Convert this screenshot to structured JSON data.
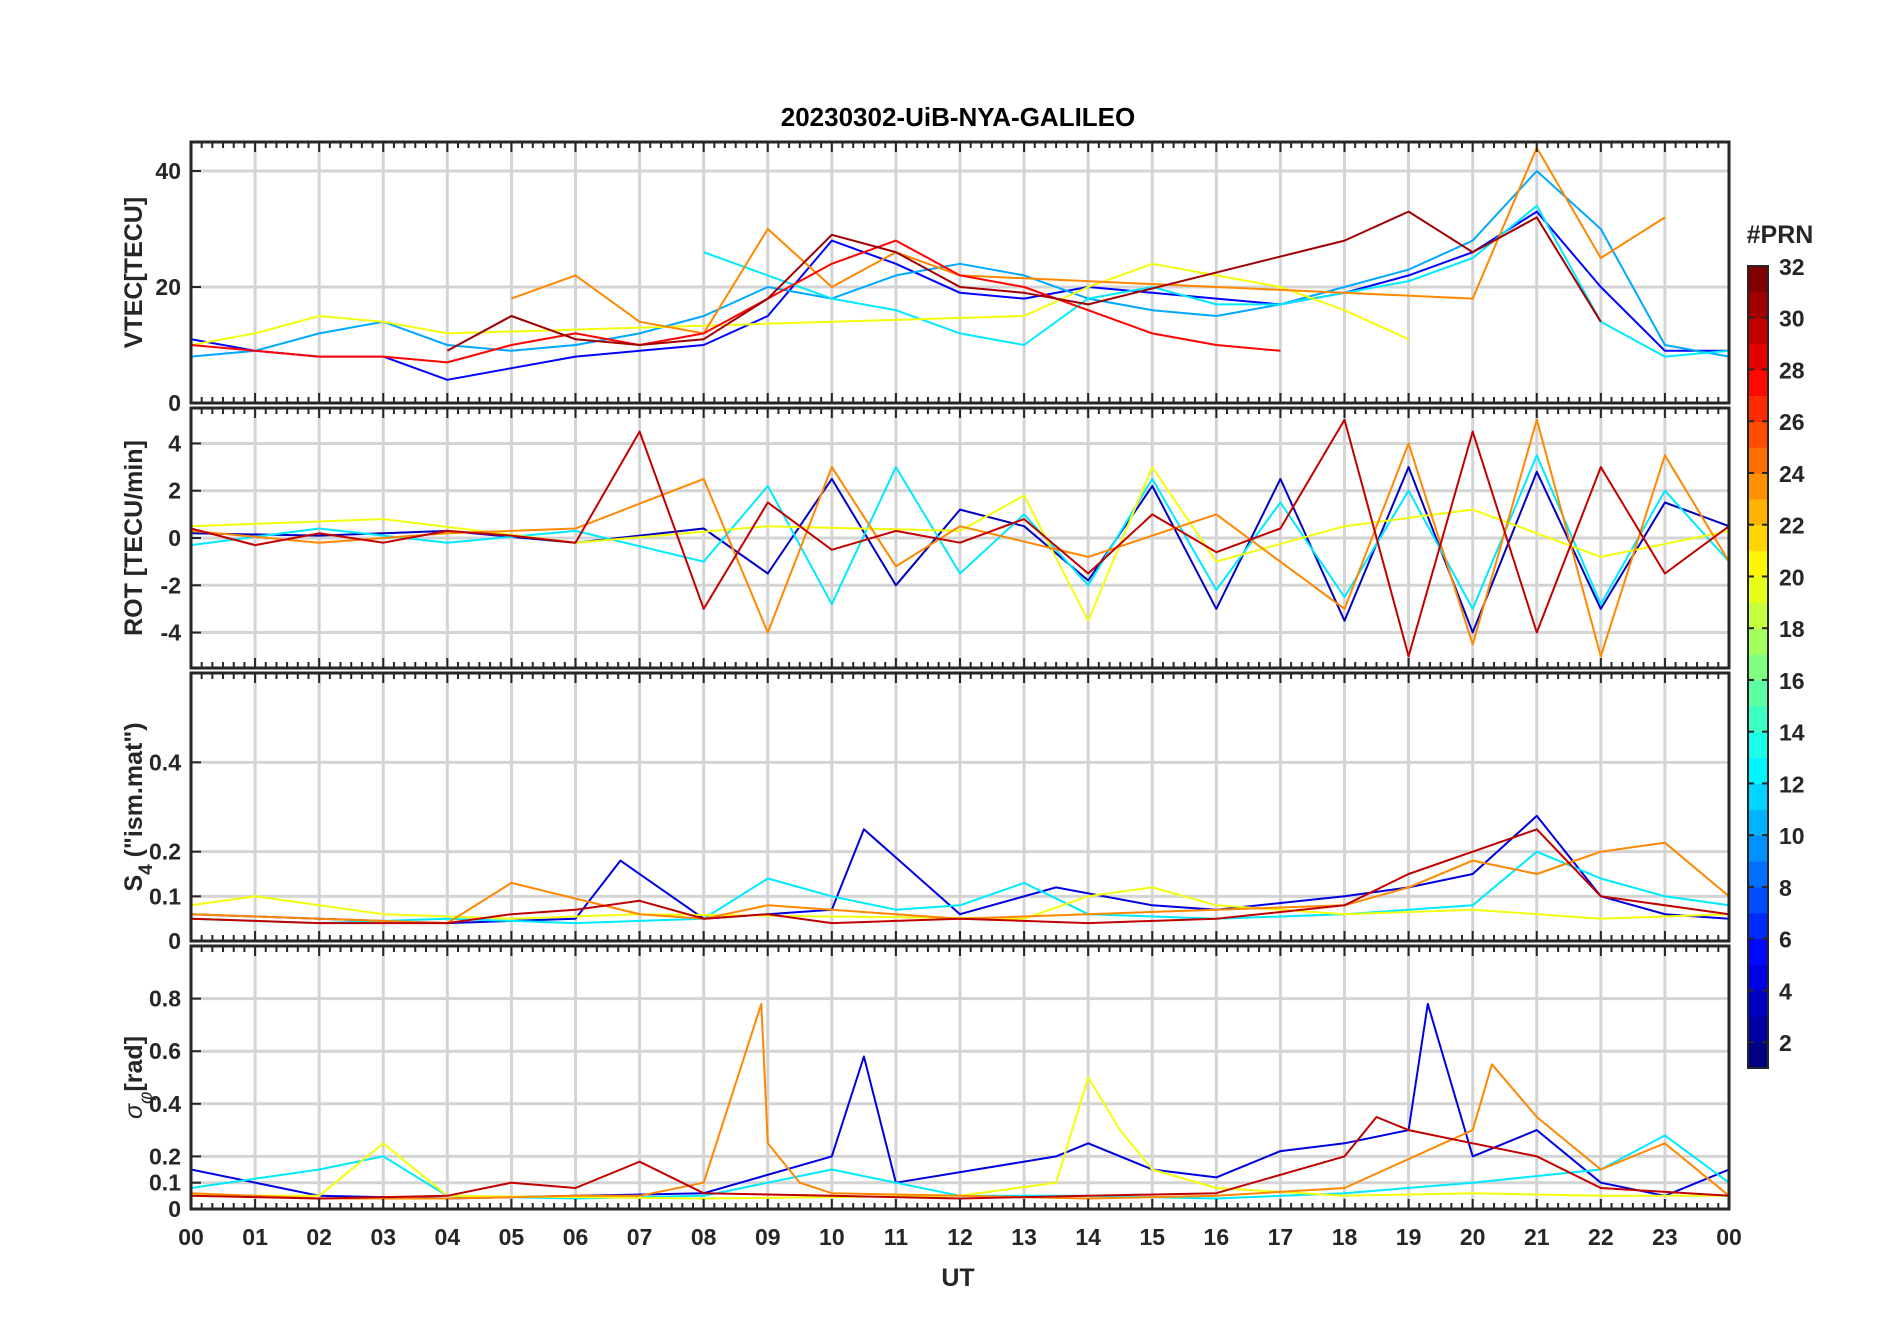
{
  "chart_data": {
    "type": "line",
    "title": "20230302-UiB-NYA-GALILEO",
    "xlabel": "UT",
    "x_ticks": [
      "00",
      "01",
      "02",
      "03",
      "04",
      "05",
      "06",
      "07",
      "08",
      "09",
      "10",
      "11",
      "12",
      "13",
      "14",
      "15",
      "16",
      "17",
      "18",
      "19",
      "20",
      "21",
      "22",
      "23",
      "00"
    ],
    "xlim_hours": [
      0,
      24
    ],
    "colorbar": {
      "label": "#PRN",
      "range": [
        1,
        32
      ],
      "ticks": [
        "2",
        "4",
        "6",
        "8",
        "10",
        "12",
        "14",
        "16",
        "18",
        "20",
        "22",
        "24",
        "26",
        "28",
        "30",
        "32"
      ],
      "colormap": "jet"
    },
    "panels": [
      {
        "id": "vtec",
        "ylabel": "VTEC[TECU]",
        "ylim": [
          0,
          45
        ],
        "yticks": [
          "0",
          "20",
          "40"
        ],
        "series": [
          {
            "prn": 5,
            "x": [
              0,
              1,
              2,
              3,
              4,
              5,
              6,
              7,
              8,
              9,
              10,
              11,
              12,
              13,
              14,
              15,
              16,
              17,
              18,
              19,
              20,
              21,
              22,
              23,
              24
            ],
            "y": [
              11,
              9,
              8,
              8,
              4,
              6,
              8,
              9,
              10,
              15,
              28,
              24,
              19,
              18,
              20,
              19,
              18,
              17,
              19,
              22,
              26,
              33,
              20,
              9,
              9
            ]
          },
          {
            "prn": 10,
            "x": [
              0,
              1,
              2,
              3,
              4,
              5,
              6,
              7,
              8,
              9,
              10,
              11,
              12,
              13,
              14,
              15,
              16,
              17,
              18,
              19,
              20,
              21,
              22,
              23,
              24
            ],
            "y": [
              8,
              9,
              12,
              14,
              10,
              9,
              10,
              12,
              15,
              20,
              18,
              22,
              24,
              22,
              18,
              16,
              15,
              17,
              20,
              23,
              28,
              40,
              30,
              10,
              8
            ]
          },
          {
            "prn": 12,
            "x": [
              8,
              9,
              10,
              11,
              12,
              13,
              14,
              15,
              16,
              17,
              18,
              19,
              20,
              21,
              22,
              23,
              24
            ],
            "y": [
              26,
              22,
              18,
              16,
              12,
              10,
              18,
              20,
              17,
              17,
              19,
              21,
              25,
              34,
              14,
              8,
              9
            ]
          },
          {
            "prn": 20,
            "x": [
              0,
              1,
              2,
              3,
              4,
              13,
              14,
              15,
              16,
              17,
              18,
              19
            ],
            "y": [
              10,
              12,
              15,
              14,
              12,
              15,
              20,
              24,
              22,
              20,
              16,
              11
            ]
          },
          {
            "prn": 24,
            "x": [
              5,
              6,
              7,
              8,
              9,
              10,
              11,
              12,
              20,
              21,
              22,
              23
            ],
            "y": [
              18,
              22,
              14,
              12,
              30,
              20,
              26,
              22,
              18,
              44,
              25,
              32
            ]
          },
          {
            "prn": 28,
            "x": [
              0,
              1,
              2,
              3,
              4,
              5,
              6,
              7,
              8,
              9,
              10,
              11,
              12,
              13,
              14,
              15,
              16,
              17
            ],
            "y": [
              10,
              9,
              8,
              8,
              7,
              10,
              12,
              10,
              12,
              18,
              24,
              28,
              22,
              20,
              16,
              12,
              10,
              9
            ]
          },
          {
            "prn": 31,
            "x": [
              4,
              5,
              6,
              7,
              8,
              9,
              10,
              11,
              12,
              13,
              14,
              18,
              19,
              20,
              21,
              22
            ],
            "y": [
              9,
              15,
              11,
              10,
              11,
              18,
              29,
              26,
              20,
              19,
              17,
              28,
              33,
              26,
              32,
              14
            ]
          }
        ]
      },
      {
        "id": "rot",
        "ylabel": "ROT [TECU/min]",
        "ylim": [
          -5.5,
          5.5
        ],
        "yticks": [
          "-4",
          "-2",
          "0",
          "2",
          "4"
        ],
        "series": [
          {
            "prn": 3,
            "x": [
              0,
              2,
              4,
              6,
              8,
              9,
              10,
              11,
              12,
              13,
              14,
              15,
              16,
              17,
              18,
              19,
              20,
              21,
              22,
              23,
              24
            ],
            "y": [
              0.2,
              0.1,
              0.3,
              -0.2,
              0.4,
              -1.5,
              2.5,
              -2,
              1.2,
              0.5,
              -1.8,
              2.2,
              -3,
              2.5,
              -3.5,
              3,
              -4,
              2.8,
              -3,
              1.5,
              0.5
            ]
          },
          {
            "prn": 12,
            "x": [
              0,
              2,
              4,
              6,
              8,
              9,
              10,
              11,
              12,
              13,
              14,
              15,
              16,
              17,
              18,
              19,
              20,
              21,
              22,
              23,
              24
            ],
            "y": [
              -0.3,
              0.4,
              -0.2,
              0.3,
              -1,
              2.2,
              -2.8,
              3,
              -1.5,
              1,
              -2,
              2.5,
              -2.2,
              1.5,
              -2.5,
              2,
              -3,
              3.5,
              -2.8,
              2,
              -1
            ]
          },
          {
            "prn": 20,
            "x": [
              0,
              3,
              6,
              9,
              12,
              13,
              14,
              15,
              16,
              18,
              20,
              22,
              24
            ],
            "y": [
              0.5,
              0.8,
              -0.2,
              0.5,
              0.3,
              1.8,
              -3.5,
              3,
              -1,
              0.5,
              1.2,
              -0.8,
              0.3
            ]
          },
          {
            "prn": 24,
            "x": [
              0,
              2,
              4,
              6,
              8,
              9,
              10,
              11,
              12,
              14,
              16,
              18,
              19,
              20,
              21,
              22,
              23,
              24
            ],
            "y": [
              0.3,
              -0.2,
              0.2,
              0.4,
              2.5,
              -4,
              3,
              -1.2,
              0.5,
              -0.8,
              1,
              -3,
              4,
              -4.5,
              5,
              -5,
              3.5,
              -1
            ]
          },
          {
            "prn": 30,
            "x": [
              0,
              1,
              2,
              3,
              4,
              5,
              6,
              7,
              8,
              9,
              10,
              11,
              12,
              13,
              14,
              15,
              16,
              17,
              18,
              19,
              20,
              21,
              22,
              23,
              24
            ],
            "y": [
              0.4,
              -0.3,
              0.2,
              -0.2,
              0.3,
              0.1,
              -0.2,
              4.5,
              -3,
              1.5,
              -0.5,
              0.3,
              -0.2,
              0.8,
              -1.5,
              1,
              -0.6,
              0.4,
              5,
              -5,
              4.5,
              -4,
              3,
              -1.5,
              0.5
            ]
          }
        ]
      },
      {
        "id": "s4",
        "ylabel": "S4 (\"ism.mat\")",
        "ylabel_main": "S",
        "ylabel_sub": "4",
        "ylabel_rest": " (\"ism.mat\")",
        "ylim": [
          0,
          0.6
        ],
        "yticks": [
          "0",
          "0.1",
          "0.2",
          "0.4"
        ],
        "series": [
          {
            "prn": 4,
            "x": [
              0,
              2,
              4,
              6,
              6.7,
              8,
              10,
              10.5,
              12,
              13.5,
              15,
              16,
              18,
              19,
              20,
              21,
              22,
              23,
              24
            ],
            "y": [
              0.06,
              0.05,
              0.04,
              0.05,
              0.18,
              0.05,
              0.07,
              0.25,
              0.06,
              0.12,
              0.08,
              0.07,
              0.1,
              0.12,
              0.15,
              0.28,
              0.1,
              0.06,
              0.05
            ]
          },
          {
            "prn": 12,
            "x": [
              0,
              2,
              4,
              6,
              8,
              9,
              10,
              11,
              12,
              13,
              14,
              16,
              18,
              20,
              21,
              22,
              23,
              24
            ],
            "y": [
              0.05,
              0.04,
              0.05,
              0.04,
              0.05,
              0.14,
              0.1,
              0.07,
              0.08,
              0.13,
              0.06,
              0.05,
              0.06,
              0.08,
              0.2,
              0.14,
              0.1,
              0.08
            ]
          },
          {
            "prn": 20,
            "x": [
              0,
              1,
              3,
              5,
              7,
              13,
              14,
              15,
              16,
              18,
              20,
              22,
              24
            ],
            "y": [
              0.08,
              0.1,
              0.06,
              0.05,
              0.06,
              0.05,
              0.1,
              0.12,
              0.08,
              0.06,
              0.07,
              0.05,
              0.06
            ]
          },
          {
            "prn": 24,
            "x": [
              0,
              2,
              4,
              5,
              7,
              8,
              9,
              12,
              14,
              16,
              18,
              19,
              20,
              21,
              22,
              23,
              24
            ],
            "y": [
              0.06,
              0.05,
              0.04,
              0.13,
              0.06,
              0.05,
              0.08,
              0.05,
              0.06,
              0.07,
              0.08,
              0.12,
              0.18,
              0.15,
              0.2,
              0.22,
              0.1
            ]
          },
          {
            "prn": 30,
            "x": [
              0,
              2,
              4,
              5,
              6,
              7,
              8,
              9,
              10,
              12,
              14,
              16,
              18,
              19,
              20,
              21,
              22,
              24
            ],
            "y": [
              0.05,
              0.04,
              0.04,
              0.06,
              0.07,
              0.09,
              0.05,
              0.06,
              0.04,
              0.05,
              0.04,
              0.05,
              0.08,
              0.15,
              0.2,
              0.25,
              0.1,
              0.06
            ]
          }
        ]
      },
      {
        "id": "sigma-phi",
        "ylabel": "σφ[rad]",
        "ylabel_main": "σ",
        "ylabel_sub": "φ",
        "ylabel_rest": "[rad]",
        "ylim": [
          0,
          1.0
        ],
        "yticks": [
          "0",
          "0.1",
          "0.2",
          "0.4",
          "0.6",
          "0.8"
        ],
        "series": [
          {
            "prn": 4,
            "x": [
              0,
              2,
              4,
              6,
              8,
              10,
              10.5,
              11,
              13.5,
              14,
              15,
              16,
              17,
              18,
              19,
              19.3,
              20,
              21,
              22,
              23,
              24
            ],
            "y": [
              0.15,
              0.05,
              0.04,
              0.05,
              0.06,
              0.2,
              0.58,
              0.1,
              0.2,
              0.25,
              0.15,
              0.12,
              0.22,
              0.25,
              0.3,
              0.78,
              0.2,
              0.3,
              0.1,
              0.05,
              0.15
            ]
          },
          {
            "prn": 12,
            "x": [
              0,
              2,
              3,
              4,
              6,
              8,
              9,
              10,
              11,
              12,
              14,
              16,
              18,
              20,
              22,
              23,
              24
            ],
            "y": [
              0.08,
              0.15,
              0.2,
              0.05,
              0.04,
              0.05,
              0.1,
              0.15,
              0.1,
              0.05,
              0.05,
              0.04,
              0.06,
              0.1,
              0.15,
              0.28,
              0.1
            ]
          },
          {
            "prn": 20,
            "x": [
              0,
              2,
              3,
              4,
              8,
              12,
              13.5,
              14,
              14.5,
              15,
              16,
              18,
              20,
              22,
              24
            ],
            "y": [
              0.05,
              0.05,
              0.25,
              0.05,
              0.04,
              0.05,
              0.1,
              0.5,
              0.3,
              0.15,
              0.08,
              0.05,
              0.06,
              0.05,
              0.05
            ]
          },
          {
            "prn": 24,
            "x": [
              0,
              2,
              4,
              6,
              7,
              8,
              8.9,
              9,
              9.5,
              10,
              12,
              14,
              16,
              18,
              20,
              20.3,
              21,
              22,
              23,
              24
            ],
            "y": [
              0.06,
              0.04,
              0.04,
              0.05,
              0.05,
              0.1,
              0.78,
              0.25,
              0.1,
              0.06,
              0.05,
              0.04,
              0.05,
              0.08,
              0.3,
              0.55,
              0.35,
              0.15,
              0.25,
              0.05
            ]
          },
          {
            "prn": 30,
            "x": [
              0,
              2,
              4,
              5,
              6,
              7,
              8,
              10,
              12,
              14,
              16,
              18,
              18.5,
              19,
              20,
              21,
              22,
              24
            ],
            "y": [
              0.05,
              0.04,
              0.05,
              0.1,
              0.08,
              0.18,
              0.06,
              0.05,
              0.04,
              0.05,
              0.06,
              0.2,
              0.35,
              0.3,
              0.25,
              0.2,
              0.08,
              0.05
            ]
          }
        ]
      }
    ]
  }
}
